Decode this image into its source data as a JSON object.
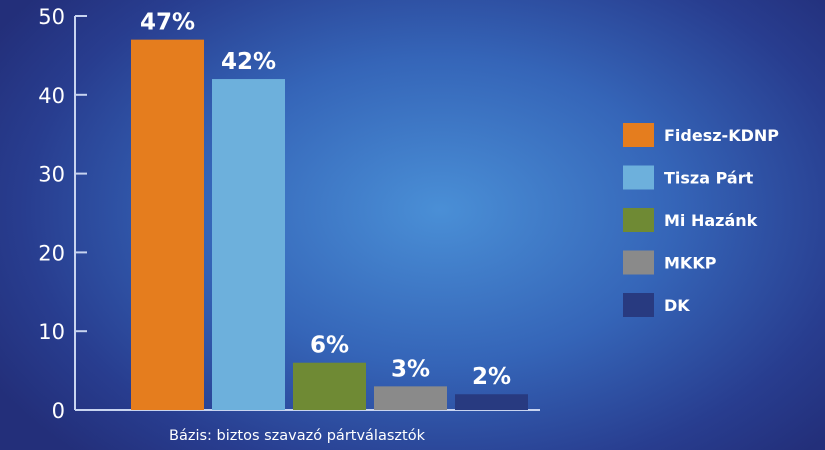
{
  "chart_data": {
    "type": "bar",
    "categories": [
      "Fidesz-KDNP",
      "Tisza Párt",
      "Mi Hazánk",
      "MKKP",
      "DK"
    ],
    "values": [
      47,
      42,
      6,
      3,
      2
    ],
    "data_labels": [
      "47%",
      "42%",
      "6%",
      "3%",
      "2%"
    ],
    "colors": [
      "#e57d1e",
      "#6db0dc",
      "#6f8a34",
      "#8a8a8a",
      "#283a80"
    ],
    "ylim": [
      0,
      50
    ],
    "yticks": [
      0,
      10,
      20,
      30,
      40,
      50
    ],
    "legend_position": "right",
    "grid": false,
    "note": "Bázis: biztos szavazó pártválasztók"
  }
}
